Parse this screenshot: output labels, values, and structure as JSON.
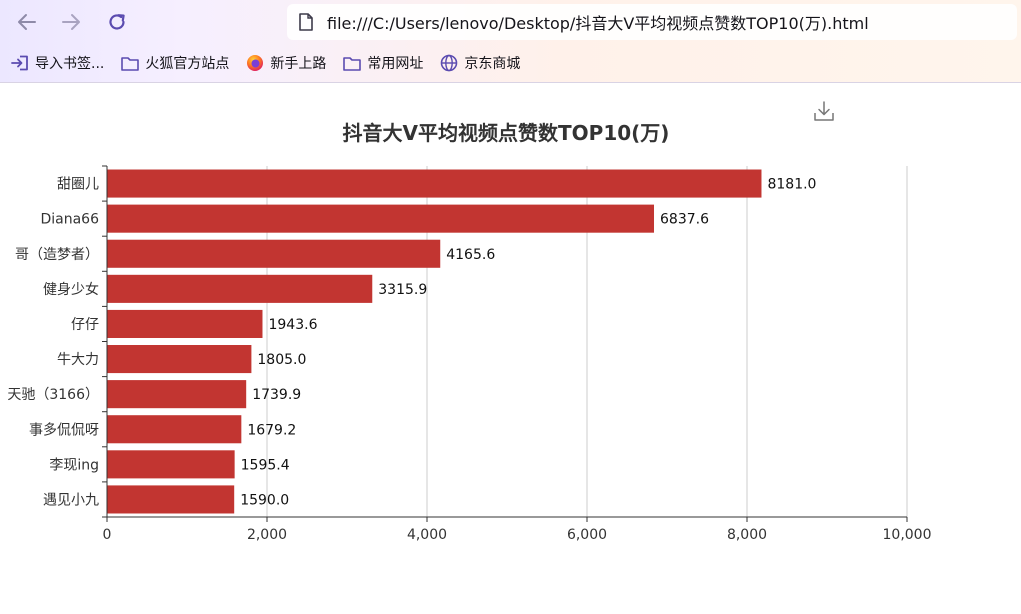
{
  "browser": {
    "url": "file:///C:/Users/lenovo/Desktop/抖音大V平均视频点赞数TOP10(万).html",
    "bookmarks": [
      {
        "label": "导入书签...",
        "icon": "import-icon"
      },
      {
        "label": "火狐官方站点",
        "icon": "folder-icon"
      },
      {
        "label": "新手上路",
        "icon": "firefox-icon"
      },
      {
        "label": "常用网址",
        "icon": "folder-icon"
      },
      {
        "label": "京东商城",
        "icon": "globe-icon"
      }
    ]
  },
  "chart_data": {
    "type": "bar",
    "orientation": "horizontal",
    "title": "抖音大V平均视频点赞数TOP10(万)",
    "categories": [
      "甜圈儿",
      "Diana66",
      "哥（造梦者）",
      "健身少女",
      "仔仔",
      "牛大力",
      "天驰（3166）",
      "事多侃侃呀",
      "李现ing",
      "遇见小九"
    ],
    "values": [
      8181.0,
      6837.6,
      4165.6,
      3315.9,
      1943.6,
      1805.0,
      1739.9,
      1679.2,
      1595.4,
      1590.0
    ],
    "value_labels": [
      "8181.0",
      "6837.6",
      "4165.6",
      "3315.9",
      "1943.6",
      "1805.0",
      "1739.9",
      "1679.2",
      "1595.4",
      "1590.0"
    ],
    "xlim": [
      0,
      10000
    ],
    "x_ticks": [
      0,
      2000,
      4000,
      6000,
      8000,
      10000
    ],
    "x_tick_labels": [
      "0",
      "2,000",
      "4,000",
      "6,000",
      "8,000",
      "10,000"
    ],
    "bar_color": "#c23531",
    "grid": "vertical"
  }
}
